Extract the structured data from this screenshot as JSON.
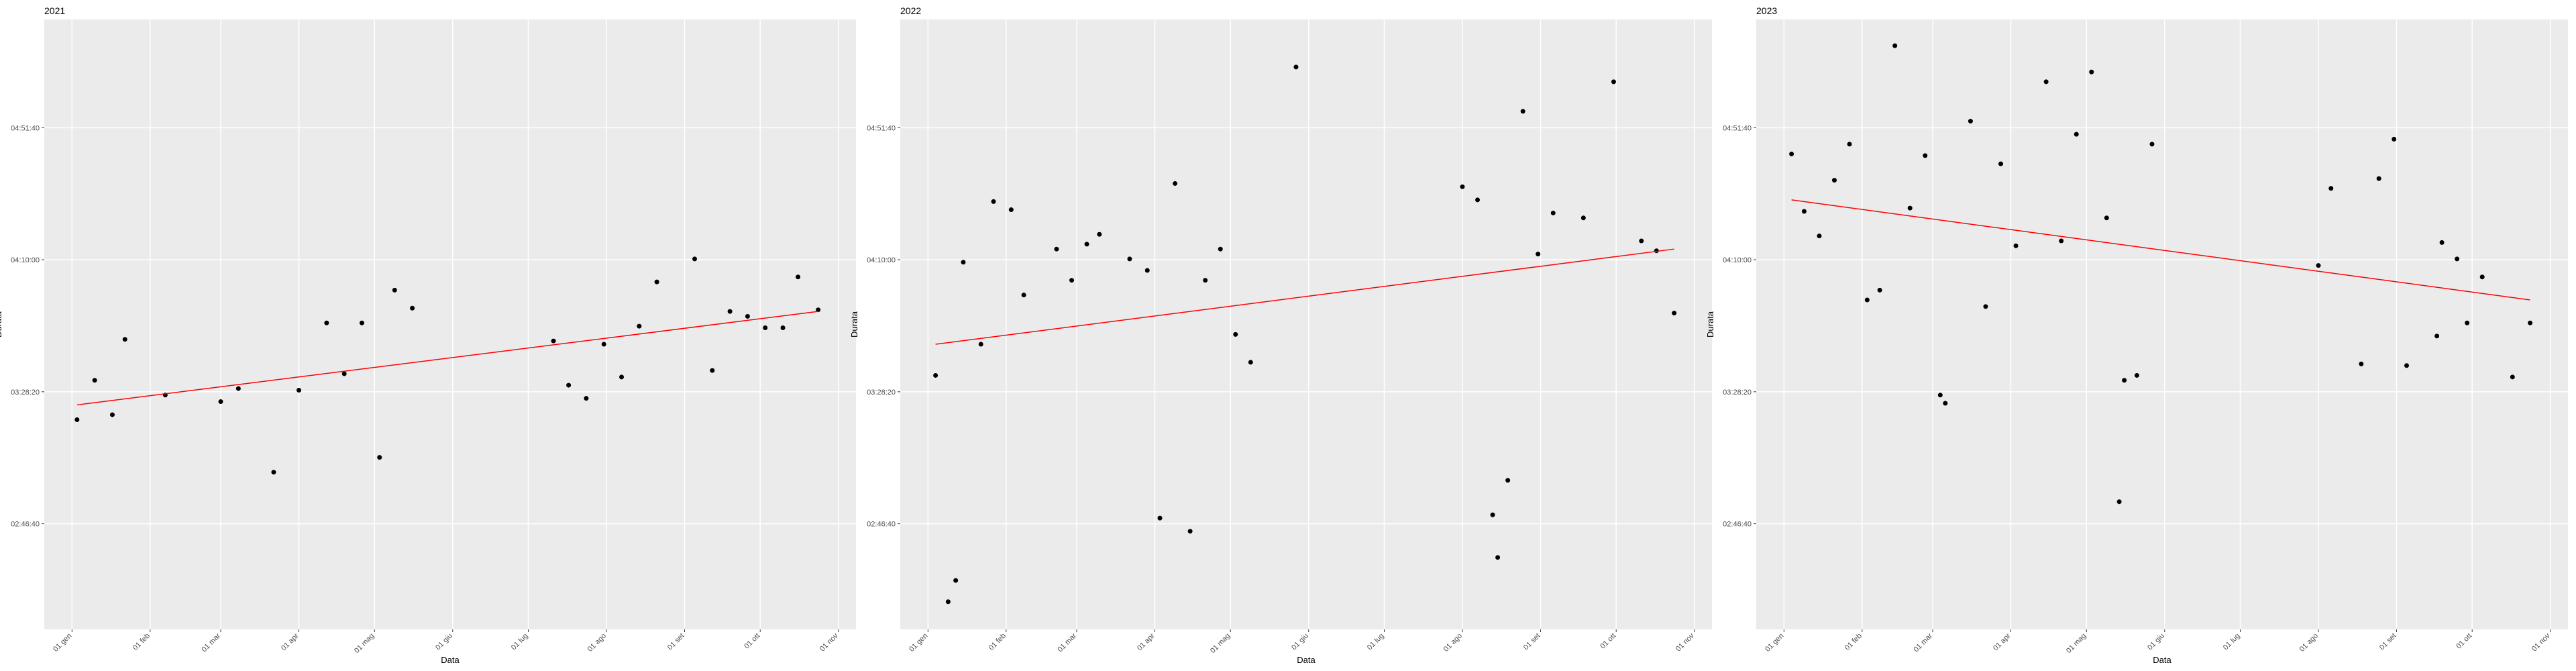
{
  "chart_data": [
    {
      "type": "scatter",
      "title": "2021",
      "x_label": "Data",
      "y_label": "Durata",
      "grid": true,
      "xlim": [
        -10,
        312
      ],
      "ylim": [
        8000,
        19550
      ],
      "xticks": [
        {
          "value": 1,
          "label": "01 gen"
        },
        {
          "value": 32,
          "label": "01 feb"
        },
        {
          "value": 60,
          "label": "01 mar"
        },
        {
          "value": 91,
          "label": "01 apr"
        },
        {
          "value": 121,
          "label": "01 mag"
        },
        {
          "value": 152,
          "label": "01 giu"
        },
        {
          "value": 182,
          "label": "01 lug"
        },
        {
          "value": 213,
          "label": "01 ago"
        },
        {
          "value": 244,
          "label": "01 set"
        },
        {
          "value": 274,
          "label": "01 ott"
        },
        {
          "value": 305,
          "label": "01 nov"
        }
      ],
      "yticks": [
        {
          "value": 10000,
          "label": "02:46:40"
        },
        {
          "value": 12500,
          "label": "03:28:20"
        },
        {
          "value": 15000,
          "label": "04:10:00"
        },
        {
          "value": 17500,
          "label": "04:51:40"
        }
      ],
      "series": [
        {
          "color": "#000000",
          "x": [
            3,
            10,
            17,
            22,
            38,
            60,
            67,
            81,
            91,
            102,
            109,
            116,
            123,
            129,
            136,
            192,
            198,
            205,
            212,
            219,
            226,
            233,
            248,
            255,
            262,
            269,
            276,
            283,
            289,
            297
          ],
          "values": [
            11971,
            12717,
            12065,
            13493,
            12437,
            12313,
            12561,
            10977,
            12530,
            13804,
            12841,
            13804,
            11257,
            14425,
            14083,
            13462,
            12624,
            12375,
            13400,
            12779,
            13742,
            14580,
            15015,
            12903,
            14021,
            13928,
            13711,
            13711,
            14674,
            14052
          ]
        }
      ],
      "trend": {
        "color": "#ff0000",
        "x": [
          3,
          297
        ],
        "values": [
          12251,
          14021
        ]
      }
    },
    {
      "type": "scatter",
      "title": "2022",
      "x_label": "Data",
      "y_label": "Durata",
      "grid": true,
      "xlim": [
        -10,
        312
      ],
      "ylim": [
        8000,
        19550
      ],
      "xticks": [
        {
          "value": 1,
          "label": "01 gen"
        },
        {
          "value": 32,
          "label": "01 feb"
        },
        {
          "value": 60,
          "label": "01 mar"
        },
        {
          "value": 91,
          "label": "01 apr"
        },
        {
          "value": 121,
          "label": "01 mag"
        },
        {
          "value": 152,
          "label": "01 giu"
        },
        {
          "value": 182,
          "label": "01 lug"
        },
        {
          "value": 213,
          "label": "01 ago"
        },
        {
          "value": 244,
          "label": "01 set"
        },
        {
          "value": 274,
          "label": "01 ott"
        },
        {
          "value": 305,
          "label": "01 nov"
        }
      ],
      "yticks": [
        {
          "value": 10000,
          "label": "02:46:40"
        },
        {
          "value": 12500,
          "label": "03:28:20"
        },
        {
          "value": 15000,
          "label": "04:10:00"
        },
        {
          "value": 17500,
          "label": "04:51:40"
        }
      ],
      "series": [
        {
          "color": "#000000",
          "x": [
            4,
            9,
            12,
            15,
            22,
            27,
            34,
            39,
            52,
            58,
            64,
            69,
            81,
            88,
            93,
            99,
            105,
            111,
            117,
            123,
            129,
            147,
            213,
            219,
            225,
            227,
            231,
            237,
            243,
            249,
            261,
            273,
            284,
            290,
            297
          ],
          "values": [
            12810,
            8524,
            8927,
            14953,
            13400,
            16102,
            15947,
            14332,
            15202,
            14611,
            15295,
            15481,
            15015,
            14798,
            10108,
            16444,
            9859,
            14611,
            15202,
            13586,
            13058,
            18649,
            16382,
            16133,
            10170,
            9362,
            10822,
            17811,
            15108,
            15885,
            15792,
            18370,
            15357,
            15170,
            13990
          ]
        }
      ],
      "trend": {
        "color": "#ff0000",
        "x": [
          4,
          297
        ],
        "values": [
          13400,
          15202
        ]
      }
    },
    {
      "type": "scatter",
      "title": "2023",
      "x_label": "Data",
      "y_label": "Durata",
      "grid": true,
      "xlim": [
        -10,
        312
      ],
      "ylim": [
        8000,
        19550
      ],
      "xticks": [
        {
          "value": 1,
          "label": "01 gen"
        },
        {
          "value": 32,
          "label": "01 feb"
        },
        {
          "value": 60,
          "label": "01 mar"
        },
        {
          "value": 91,
          "label": "01 apr"
        },
        {
          "value": 121,
          "label": "01 mag"
        },
        {
          "value": 152,
          "label": "01 giu"
        },
        {
          "value": 182,
          "label": "01 lug"
        },
        {
          "value": 213,
          "label": "01 ago"
        },
        {
          "value": 244,
          "label": "01 set"
        },
        {
          "value": 274,
          "label": "01 ott"
        },
        {
          "value": 305,
          "label": "01 nov"
        }
      ],
      "yticks": [
        {
          "value": 10000,
          "label": "02:46:40"
        },
        {
          "value": 12500,
          "label": "03:28:20"
        },
        {
          "value": 15000,
          "label": "04:10:00"
        },
        {
          "value": 17500,
          "label": "04:51:40"
        }
      ],
      "series": [
        {
          "color": "#000000",
          "x": [
            4,
            9,
            15,
            21,
            27,
            34,
            39,
            45,
            51,
            57,
            63,
            65,
            75,
            81,
            87,
            93,
            105,
            111,
            117,
            123,
            129,
            134,
            136,
            141,
            147,
            213,
            218,
            230,
            237,
            243,
            248,
            260,
            262,
            268,
            272,
            278,
            290,
            297
          ],
          "values": [
            17003,
            15916,
            15450,
            16506,
            17189,
            14239,
            14425,
            19053,
            15978,
            16972,
            12437,
            12282,
            17624,
            14114,
            16817,
            15264,
            18370,
            15357,
            17376,
            18556,
            15792,
            10418,
            12717,
            12810,
            17189,
            14891,
            16351,
            13027,
            16537,
            17283,
            12996,
            13555,
            15326,
            15015,
            13804,
            14674,
            12779,
            13804
          ]
        }
      ],
      "trend": {
        "color": "#ff0000",
        "x": [
          4,
          297
        ],
        "values": [
          16133,
          14239
        ]
      }
    }
  ]
}
